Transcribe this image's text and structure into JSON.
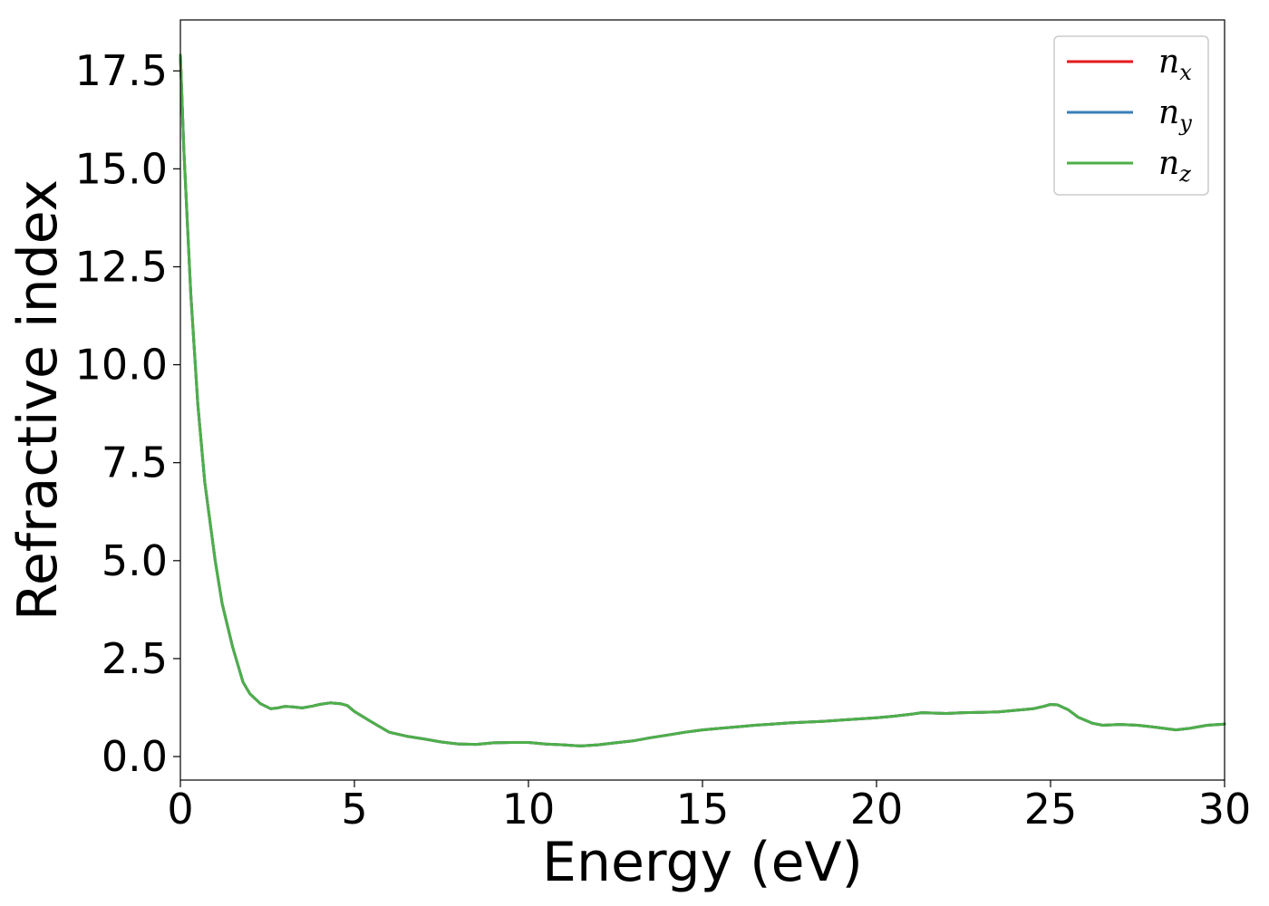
{
  "chart_data": {
    "type": "line",
    "xlabel": "Energy (eV)",
    "ylabel": "Refractive index",
    "xlim": [
      0,
      30
    ],
    "ylim": [
      -0.6,
      18.8
    ],
    "xticks": [
      0,
      5,
      10,
      15,
      20,
      25,
      30
    ],
    "xtick_labels": [
      "0",
      "5",
      "10",
      "15",
      "20",
      "25",
      "30"
    ],
    "yticks": [
      0,
      2.5,
      5,
      7.5,
      10,
      12.5,
      15,
      17.5
    ],
    "ytick_labels": [
      "0.0",
      "2.5",
      "5.0",
      "7.5",
      "10.0",
      "12.5",
      "15.0",
      "17.5"
    ],
    "grid": false,
    "legend_position": "top-right",
    "x": [
      0,
      0.1,
      0.3,
      0.5,
      0.7,
      1.0,
      1.2,
      1.5,
      1.8,
      2.0,
      2.3,
      2.6,
      2.8,
      3.0,
      3.2,
      3.5,
      3.8,
      4.0,
      4.3,
      4.6,
      4.8,
      5.0,
      5.5,
      6.0,
      6.5,
      7.0,
      7.5,
      8.0,
      8.5,
      9.0,
      9.5,
      10.0,
      10.5,
      11.0,
      11.5,
      12.0,
      12.5,
      13.0,
      13.5,
      14.0,
      14.5,
      15.0,
      15.5,
      16.0,
      16.5,
      17.0,
      17.5,
      18.0,
      18.5,
      19.0,
      19.5,
      20.0,
      20.5,
      21.0,
      21.3,
      21.6,
      22.0,
      22.5,
      23.0,
      23.5,
      24.0,
      24.5,
      24.8,
      25.0,
      25.2,
      25.5,
      25.8,
      26.2,
      26.5,
      27.0,
      27.5,
      28.0,
      28.6,
      29.0,
      29.5,
      30.0
    ],
    "series": [
      {
        "name": "n_x",
        "label_base": "n",
        "label_sub": "x",
        "color": "#e41a1c",
        "values": [
          17.9,
          15.5,
          11.8,
          9.0,
          7.0,
          5.0,
          3.9,
          2.8,
          1.9,
          1.6,
          1.35,
          1.22,
          1.24,
          1.28,
          1.27,
          1.24,
          1.29,
          1.33,
          1.37,
          1.35,
          1.3,
          1.15,
          0.88,
          0.62,
          0.52,
          0.45,
          0.37,
          0.32,
          0.31,
          0.35,
          0.36,
          0.36,
          0.32,
          0.3,
          0.27,
          0.3,
          0.35,
          0.4,
          0.48,
          0.55,
          0.62,
          0.68,
          0.72,
          0.76,
          0.8,
          0.83,
          0.86,
          0.88,
          0.9,
          0.93,
          0.96,
          0.99,
          1.03,
          1.08,
          1.12,
          1.11,
          1.1,
          1.12,
          1.13,
          1.14,
          1.18,
          1.22,
          1.28,
          1.33,
          1.32,
          1.2,
          1.0,
          0.85,
          0.8,
          0.82,
          0.8,
          0.75,
          0.68,
          0.72,
          0.8,
          0.83
        ]
      },
      {
        "name": "n_y",
        "label_base": "n",
        "label_sub": "y",
        "color": "#377eb8",
        "values": [
          17.9,
          15.5,
          11.8,
          9.0,
          7.0,
          5.0,
          3.9,
          2.8,
          1.9,
          1.6,
          1.35,
          1.22,
          1.24,
          1.28,
          1.27,
          1.24,
          1.29,
          1.33,
          1.37,
          1.35,
          1.3,
          1.15,
          0.88,
          0.62,
          0.52,
          0.45,
          0.37,
          0.32,
          0.31,
          0.35,
          0.36,
          0.36,
          0.32,
          0.3,
          0.27,
          0.3,
          0.35,
          0.4,
          0.48,
          0.55,
          0.62,
          0.68,
          0.72,
          0.76,
          0.8,
          0.83,
          0.86,
          0.88,
          0.9,
          0.93,
          0.96,
          0.99,
          1.03,
          1.08,
          1.12,
          1.11,
          1.1,
          1.12,
          1.13,
          1.14,
          1.18,
          1.22,
          1.28,
          1.33,
          1.32,
          1.2,
          1.0,
          0.85,
          0.8,
          0.82,
          0.8,
          0.75,
          0.68,
          0.72,
          0.8,
          0.83
        ]
      },
      {
        "name": "n_z",
        "label_base": "n",
        "label_sub": "z",
        "color": "#4daf4a",
        "values": [
          17.9,
          15.5,
          11.8,
          9.0,
          7.0,
          5.0,
          3.9,
          2.8,
          1.9,
          1.6,
          1.35,
          1.22,
          1.24,
          1.28,
          1.27,
          1.24,
          1.29,
          1.33,
          1.37,
          1.35,
          1.3,
          1.15,
          0.88,
          0.62,
          0.52,
          0.45,
          0.37,
          0.32,
          0.31,
          0.35,
          0.36,
          0.36,
          0.32,
          0.3,
          0.27,
          0.3,
          0.35,
          0.4,
          0.48,
          0.55,
          0.62,
          0.68,
          0.72,
          0.76,
          0.8,
          0.83,
          0.86,
          0.88,
          0.9,
          0.93,
          0.96,
          0.99,
          1.03,
          1.08,
          1.12,
          1.11,
          1.1,
          1.12,
          1.13,
          1.14,
          1.18,
          1.22,
          1.28,
          1.33,
          1.32,
          1.2,
          1.0,
          0.85,
          0.8,
          0.82,
          0.8,
          0.75,
          0.68,
          0.72,
          0.8,
          0.83
        ]
      }
    ]
  }
}
